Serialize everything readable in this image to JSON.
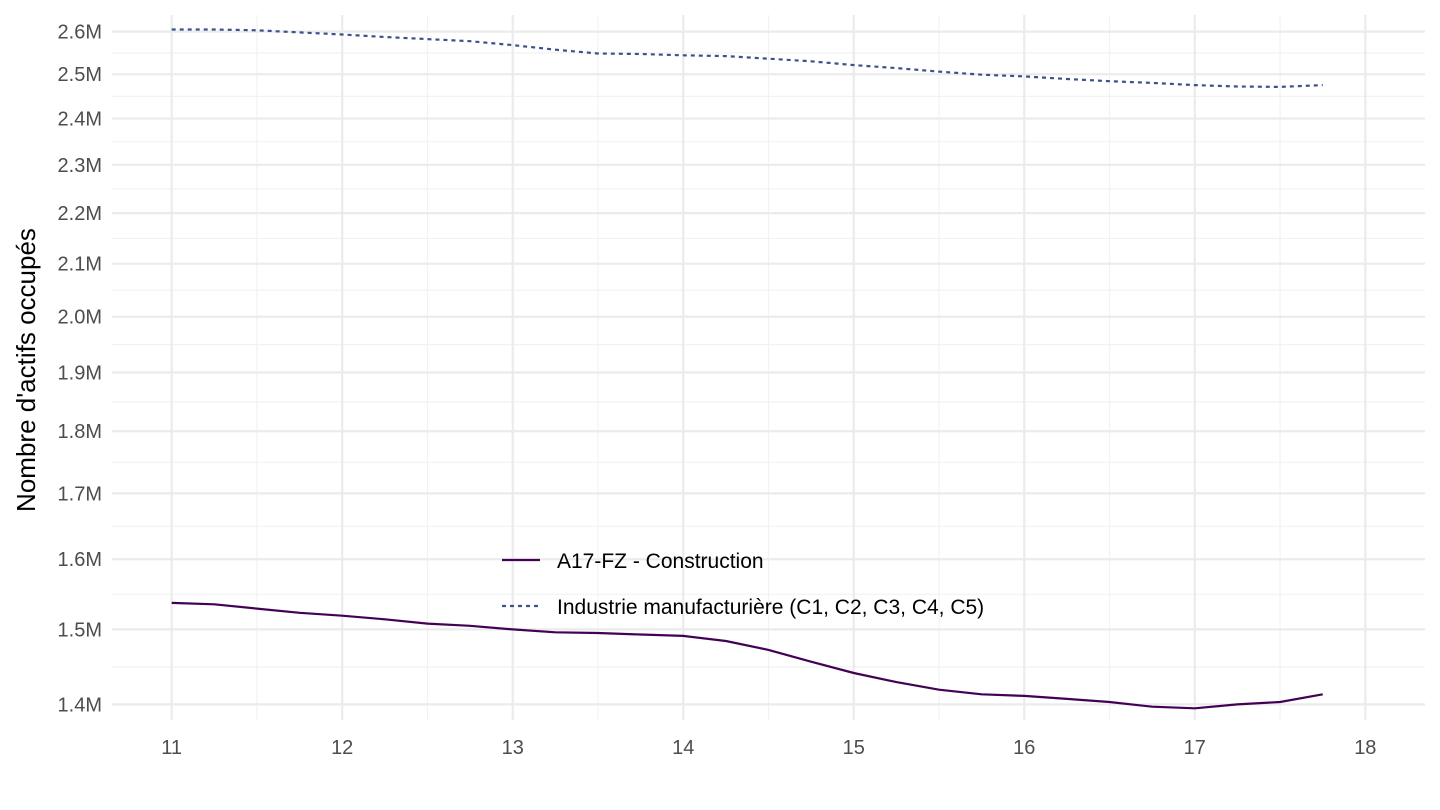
{
  "chart_data": {
    "type": "line",
    "title": "",
    "xlabel": "",
    "ylabel": "Nombre d'actifs occupés",
    "xlim": [
      10.65,
      18.35
    ],
    "ylim": [
      1.38,
      2.64
    ],
    "y_scale": "log",
    "grid": true,
    "x_ticks": [
      11,
      12,
      13,
      14,
      15,
      16,
      17,
      18
    ],
    "x_tick_labels": [
      "11",
      "12",
      "13",
      "14",
      "15",
      "16",
      "17",
      "18"
    ],
    "y_ticks": [
      1.4,
      1.5,
      1.6,
      1.7,
      1.8,
      1.9,
      2.0,
      2.1,
      2.2,
      2.3,
      2.4,
      2.5,
      2.6
    ],
    "y_tick_labels": [
      "1.4M",
      "1.5M",
      "1.6M",
      "1.7M",
      "1.8M",
      "1.9M",
      "2.0M",
      "2.1M",
      "2.2M",
      "2.3M",
      "2.4M",
      "2.5M",
      "2.6M"
    ],
    "legend_position": "bottom-center",
    "series": [
      {
        "name": "A17-FZ - Construction",
        "color": "#440154",
        "line_style": "solid",
        "x": [
          11,
          11.25,
          11.5,
          11.75,
          12,
          12.25,
          12.5,
          12.75,
          13,
          13.25,
          13.5,
          13.75,
          14,
          14.25,
          14.5,
          14.75,
          15,
          15.25,
          15.5,
          15.75,
          16,
          16.25,
          16.5,
          16.75,
          17,
          17.25,
          17.5,
          17.75
        ],
        "values": [
          1.537,
          1.535,
          1.529,
          1.523,
          1.519,
          1.514,
          1.508,
          1.505,
          1.5,
          1.496,
          1.495,
          1.493,
          1.491,
          1.484,
          1.472,
          1.456,
          1.441,
          1.429,
          1.419,
          1.413,
          1.411,
          1.407,
          1.403,
          1.397,
          1.395,
          1.4,
          1.403,
          1.413
        ]
      },
      {
        "name": "Industrie manufacturière (C1, C2, C3, C4, C5)",
        "color": "#3b528b",
        "line_style": "dashed",
        "x": [
          11,
          11.25,
          11.5,
          11.75,
          12,
          12.25,
          12.5,
          12.75,
          13,
          13.25,
          13.5,
          13.75,
          14,
          14.25,
          14.5,
          14.75,
          15,
          15.25,
          15.5,
          15.75,
          16,
          16.25,
          16.5,
          16.75,
          17,
          17.25,
          17.5,
          17.75
        ],
        "values": [
          2.605,
          2.605,
          2.603,
          2.598,
          2.593,
          2.587,
          2.582,
          2.577,
          2.568,
          2.557,
          2.548,
          2.547,
          2.544,
          2.542,
          2.536,
          2.53,
          2.521,
          2.514,
          2.506,
          2.499,
          2.495,
          2.489,
          2.484,
          2.48,
          2.475,
          2.472,
          2.471,
          2.475
        ]
      }
    ]
  }
}
